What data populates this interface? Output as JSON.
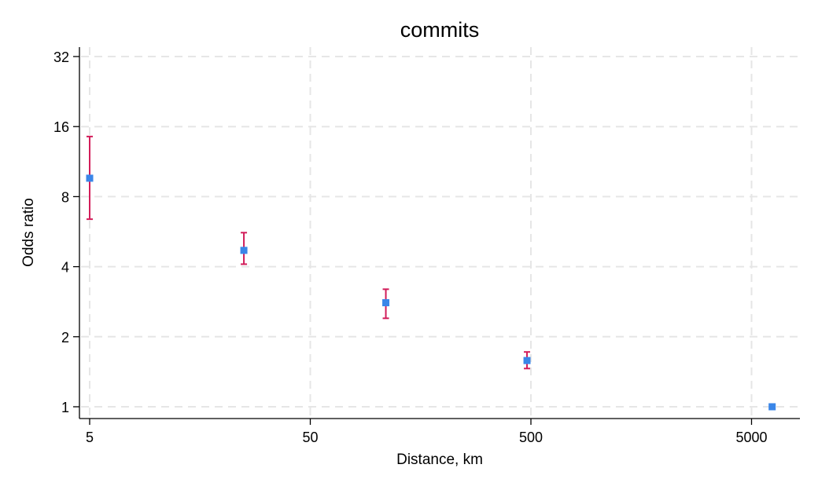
{
  "chart_data": {
    "type": "scatter",
    "title": "commits",
    "xlabel": "Distance, km",
    "ylabel": "Odds ratio",
    "x_scale": "log",
    "y_scale": "log",
    "xlim": [
      4.3,
      7000
    ],
    "ylim": [
      0.9,
      36
    ],
    "x_ticks": [
      5,
      50,
      500,
      5000
    ],
    "y_ticks": [
      1,
      2,
      4,
      8,
      16,
      32
    ],
    "grid": true,
    "legend": "none",
    "points": [
      {
        "x": 5,
        "y": 9.6,
        "lower": 6.4,
        "upper": 14.5
      },
      {
        "x": 25,
        "y": 4.7,
        "lower": 4.1,
        "upper": 5.6
      },
      {
        "x": 110,
        "y": 2.8,
        "lower": 2.4,
        "upper": 3.2
      },
      {
        "x": 480,
        "y": 1.58,
        "lower": 1.46,
        "upper": 1.72
      },
      {
        "x": 6200,
        "y": 1.0,
        "lower": 0.98,
        "upper": 1.02
      }
    ],
    "colors": {
      "marker": "#3a86e8",
      "error_bar": "#d21d5a",
      "grid": "#e6e6e6"
    }
  }
}
